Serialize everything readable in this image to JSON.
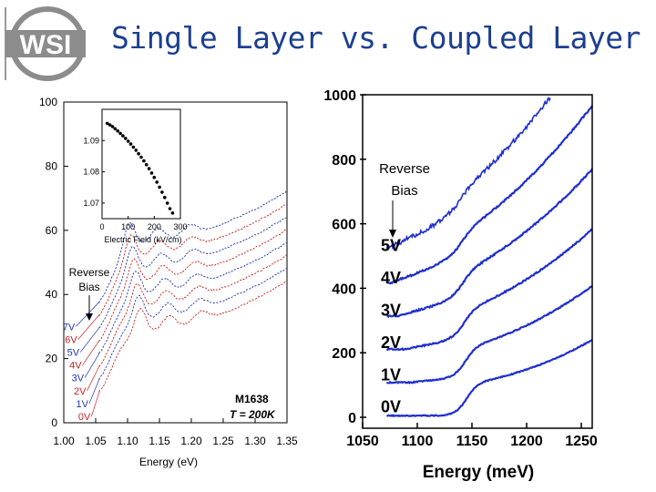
{
  "slide": {
    "title": "Single Layer vs. Coupled Layer",
    "logo_text": "WSI",
    "colors": {
      "title": "#1d3f8f",
      "logo": "#8c8c8c",
      "blue": "#1f2fd0",
      "red": "#cc2222",
      "navy": "#1c1c9c"
    }
  },
  "chart_data": [
    {
      "type": "line",
      "title": "",
      "xlabel": "Energy (eV)",
      "ylabel": "",
      "xlim": [
        1.0,
        1.35
      ],
      "ylim": [
        0,
        100
      ],
      "xticks": [
        "1.00",
        "1.05",
        "1.10",
        "1.15",
        "1.20",
        "1.25",
        "1.30",
        "1.35"
      ],
      "yticks": [
        "0",
        "20",
        "40",
        "60",
        "80",
        "100"
      ],
      "annotation": {
        "line1": "Reverse",
        "line2": "Bias"
      },
      "sample_label": {
        "line1": "M1638",
        "line2": "T = 200K"
      },
      "series": [
        {
          "name": "0V",
          "color": "#cc2222",
          "offset": 0
        },
        {
          "name": "1V",
          "color": "#2233bb",
          "offset": 4
        },
        {
          "name": "2V",
          "color": "#cc2222",
          "offset": 8
        },
        {
          "name": "3V",
          "color": "#2233bb",
          "offset": 12
        },
        {
          "name": "4V",
          "color": "#cc2222",
          "offset": 16
        },
        {
          "name": "5V",
          "color": "#2233bb",
          "offset": 20
        },
        {
          "name": "6V",
          "color": "#cc2222",
          "offset": 24
        },
        {
          "name": "7V",
          "color": "#2233bb",
          "offset": 28
        }
      ],
      "inset": {
        "type": "scatter",
        "xlabel": "Electric Field (kV/cm)",
        "xlim": [
          0,
          300
        ],
        "ylim": [
          1.065,
          1.1
        ],
        "xticks": [
          "0",
          "100",
          "200",
          "300"
        ],
        "yticks": [
          "1.07",
          "1.08",
          "1.09"
        ],
        "x": [
          20,
          30,
          40,
          50,
          60,
          70,
          80,
          90,
          100,
          110,
          120,
          130,
          140,
          150,
          160,
          170,
          180,
          190,
          200,
          210,
          220,
          230,
          240,
          250,
          260,
          270
        ],
        "y": [
          1.0955,
          1.095,
          1.0945,
          1.0938,
          1.0931,
          1.0923,
          1.0915,
          1.0907,
          1.0898,
          1.0889,
          1.0879,
          1.0869,
          1.0858,
          1.0847,
          1.0835,
          1.0823,
          1.081,
          1.0796,
          1.0782,
          1.0767,
          1.0751,
          1.0735,
          1.0718,
          1.07,
          1.0682,
          1.0668
        ]
      }
    },
    {
      "type": "line",
      "title": "",
      "xlabel": "Energy (meV)",
      "ylabel": "",
      "xlim": [
        1050,
        1260
      ],
      "ylim": [
        0,
        1000
      ],
      "xticks": [
        "1050",
        "1100",
        "1150",
        "1200",
        "1250"
      ],
      "yticks": [
        "0",
        "200",
        "400",
        "600",
        "800",
        "1000"
      ],
      "annotation": {
        "line1": "Reverse",
        "line2": "Bias"
      },
      "series": [
        {
          "name": "0V",
          "color": "#1f2fd0",
          "offset": 0
        },
        {
          "name": "1V",
          "color": "#1f2fd0",
          "offset": 100
        },
        {
          "name": "2V",
          "color": "#1f2fd0",
          "offset": 200
        },
        {
          "name": "3V",
          "color": "#1f2fd0",
          "offset": 300
        },
        {
          "name": "4V",
          "color": "#1f2fd0",
          "offset": 400
        },
        {
          "name": "5V",
          "color": "#1f2fd0",
          "offset": 500
        }
      ]
    }
  ]
}
